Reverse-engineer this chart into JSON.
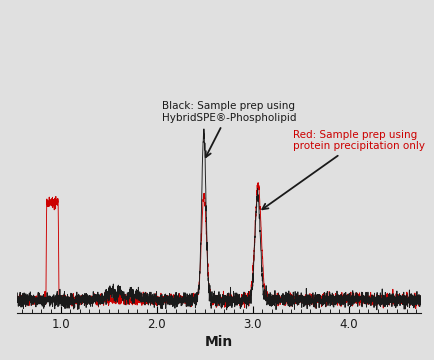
{
  "bg_color": "#e0e0e0",
  "xlim": [
    0.55,
    4.75
  ],
  "ylim": [
    -0.08,
    1.18
  ],
  "xlabel": "Min",
  "xlabel_fontsize": 10,
  "xlabel_fontweight": "bold",
  "tick_label_fontsize": 8.5,
  "black_color": "#1a1a1a",
  "red_color": "#cc0000",
  "annotation1_text": "Black: Sample prep using\nHybridSPE®-Phospholipid",
  "annotation2_text": "Red: Sample prep using\nprotein precipitation only"
}
